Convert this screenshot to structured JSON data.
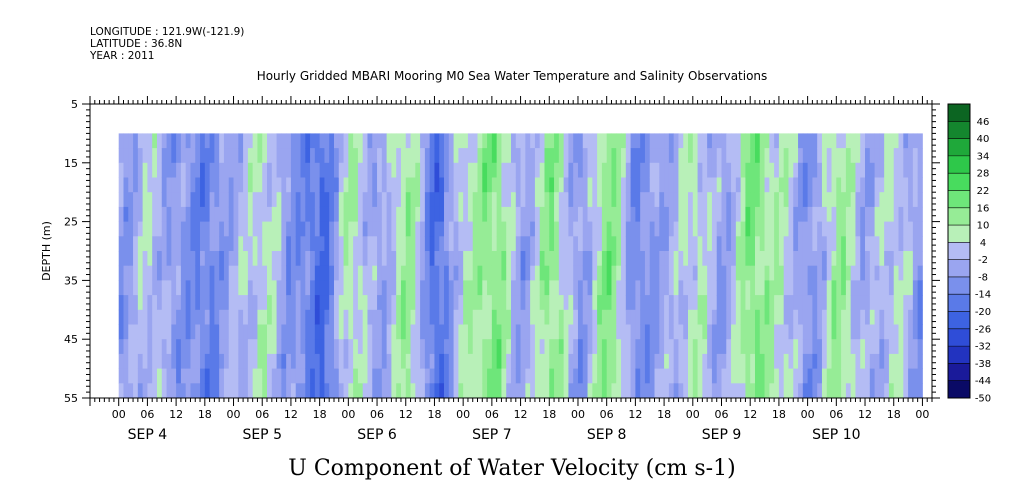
{
  "header": {
    "longitude": "LONGITUDE : 121.9W(-121.9)",
    "latitude": "LATITUDE : 36.8N",
    "year": "YEAR : 2011"
  },
  "chart_data": {
    "type": "heatmap",
    "title": "Hourly Gridded MBARI Mooring M0 Sea Water Temperature and Salinity Observations",
    "variable_title": "U Component of Water Velocity (cm s-1)",
    "ylabel": "DEPTH (m)",
    "ylim": [
      55,
      5
    ],
    "y_inverted": true,
    "y_ticks": [
      5,
      15,
      25,
      35,
      45,
      55
    ],
    "x_start": "2011-09-03 18:00",
    "x_end": "2011-09-11 02:00",
    "data_start": "2011-09-04 00:00",
    "data_end": "2011-09-11 00:00",
    "data_depth_range": [
      10,
      55
    ],
    "x_tick_hour_labels": [
      "00",
      "06",
      "12",
      "18",
      "00",
      "06",
      "12",
      "18",
      "00",
      "06",
      "12",
      "18",
      "00",
      "06",
      "12",
      "18",
      "00",
      "06",
      "12",
      "18",
      "00",
      "06",
      "12",
      "18",
      "00",
      "06",
      "12",
      "18",
      "00"
    ],
    "x_day_labels": [
      "SEP  4",
      "SEP  5",
      "SEP  6",
      "SEP  7",
      "SEP  8",
      "SEP  9",
      "SEP 10"
    ],
    "colorbar": {
      "levels": [
        -50,
        -44,
        -38,
        -32,
        -26,
        -20,
        -14,
        -8,
        -2,
        4,
        10,
        16,
        22,
        28,
        34,
        40,
        46
      ],
      "labels": [
        "46",
        "40",
        "34",
        "28",
        "22",
        "16",
        "10",
        "4",
        "-2",
        "-8",
        "-14",
        "-20",
        "-26",
        "-32",
        "-38",
        "-44",
        "-50"
      ],
      "colors": [
        "#0a0a66",
        "#1a1a9a",
        "#2233c0",
        "#2f4dd8",
        "#3d63e2",
        "#5a7ae8",
        "#7a90ec",
        "#9aa5f0",
        "#b4bcf4",
        "#b8f0b8",
        "#96ec96",
        "#6ee67a",
        "#48dc5e",
        "#2ec84a",
        "#1fa83a",
        "#14862e",
        "#0c6522"
      ]
    },
    "bands": [
      {
        "t": 0,
        "v": -8
      },
      {
        "t": 6,
        "v": 2
      },
      {
        "t": 12,
        "v": -8
      },
      {
        "t": 18,
        "v": -14
      },
      {
        "t": 24,
        "v": -2
      },
      {
        "t": 30,
        "v": 6
      },
      {
        "t": 36,
        "v": -10
      },
      {
        "t": 42,
        "v": -20
      },
      {
        "t": 48,
        "v": 8
      },
      {
        "t": 54,
        "v": -6
      },
      {
        "t": 60,
        "v": 12
      },
      {
        "t": 66,
        "v": -20
      },
      {
        "t": 72,
        "v": 6
      },
      {
        "t": 78,
        "v": 16
      },
      {
        "t": 84,
        "v": -6
      },
      {
        "t": 90,
        "v": 14
      },
      {
        "t": 96,
        "v": -8
      },
      {
        "t": 102,
        "v": 16
      },
      {
        "t": 108,
        "v": -12
      },
      {
        "t": 114,
        "v": -4
      },
      {
        "t": 120,
        "v": 6
      },
      {
        "t": 126,
        "v": -6
      },
      {
        "t": 132,
        "v": 16
      },
      {
        "t": 138,
        "v": 6
      },
      {
        "t": 144,
        "v": -10
      },
      {
        "t": 150,
        "v": 12
      },
      {
        "t": 156,
        "v": -4
      },
      {
        "t": 162,
        "v": 4
      },
      {
        "t": 168,
        "v": -10
      }
    ]
  }
}
